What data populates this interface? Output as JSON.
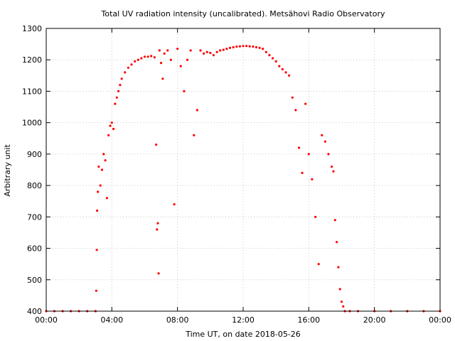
{
  "chart_data": {
    "type": "scatter",
    "title": "Total UV radiation intensity (uncalibrated). Metsähovi Radio Observatory",
    "xlabel": "Time UT, on date 2018-05-26",
    "ylabel": "Arbitrary unit",
    "xlim": [
      "00:00",
      "24:00"
    ],
    "ylim": [
      400,
      1300
    ],
    "x_unit": "hours UT",
    "xticks": [
      "00:00",
      "04:00",
      "08:00",
      "12:00",
      "16:00",
      "20:00",
      "00:00"
    ],
    "yticks": [
      400,
      500,
      600,
      700,
      800,
      900,
      1000,
      1100,
      1200,
      1300
    ],
    "grid": true,
    "marker_color": "#ff0000",
    "series": [
      {
        "x": [
          0.0,
          0.5,
          1.0,
          1.5,
          2.0,
          2.5,
          3.0,
          3.05,
          3.08,
          3.1,
          3.15,
          3.2,
          3.3,
          3.4,
          3.5,
          3.6,
          3.7,
          3.8,
          3.9,
          4.0,
          4.1,
          4.2,
          4.3,
          4.4,
          4.5,
          4.6,
          4.8,
          5.0,
          5.2,
          5.4,
          5.6,
          5.8,
          6.0,
          6.2,
          6.4,
          6.6,
          6.7,
          6.75,
          6.8,
          6.85,
          6.9,
          7.0,
          7.1,
          7.2,
          7.4,
          7.6,
          7.8,
          8.0,
          8.2,
          8.4,
          8.6,
          8.8,
          9.0,
          9.2,
          9.4,
          9.6,
          9.8,
          10.0,
          10.2,
          10.4,
          10.6,
          10.8,
          11.0,
          11.2,
          11.4,
          11.6,
          11.8,
          12.0,
          12.2,
          12.4,
          12.6,
          12.8,
          13.0,
          13.2,
          13.4,
          13.6,
          13.8,
          14.0,
          14.2,
          14.4,
          14.6,
          14.8,
          15.0,
          15.2,
          15.4,
          15.6,
          15.8,
          16.0,
          16.2,
          16.4,
          16.6,
          16.8,
          17.0,
          17.2,
          17.4,
          17.5,
          17.6,
          17.7,
          17.8,
          17.9,
          18.0,
          18.1,
          18.2,
          18.5,
          19.0,
          20.0,
          21.0,
          22.0,
          23.0,
          24.0
        ],
        "y": [
          400,
          400,
          400,
          400,
          400,
          400,
          400,
          465,
          595,
          720,
          780,
          860,
          800,
          850,
          900,
          880,
          760,
          960,
          990,
          1000,
          980,
          1060,
          1080,
          1100,
          1120,
          1140,
          1160,
          1175,
          1185,
          1195,
          1200,
          1205,
          1210,
          1210,
          1212,
          1208,
          930,
          660,
          680,
          520,
          1230,
          1190,
          1140,
          1220,
          1230,
          1200,
          740,
          1235,
          1180,
          1100,
          1200,
          1230,
          960,
          1040,
          1230,
          1220,
          1225,
          1222,
          1215,
          1225,
          1230,
          1232,
          1235,
          1238,
          1240,
          1242,
          1243,
          1244,
          1244,
          1243,
          1242,
          1240,
          1238,
          1235,
          1225,
          1215,
          1205,
          1195,
          1180,
          1170,
          1160,
          1150,
          1080,
          1040,
          920,
          840,
          1060,
          900,
          820,
          700,
          550,
          960,
          940,
          900,
          860,
          845,
          690,
          620,
          540,
          470,
          430,
          415,
          400,
          400,
          400,
          400,
          400,
          400,
          400,
          400
        ]
      }
    ]
  }
}
